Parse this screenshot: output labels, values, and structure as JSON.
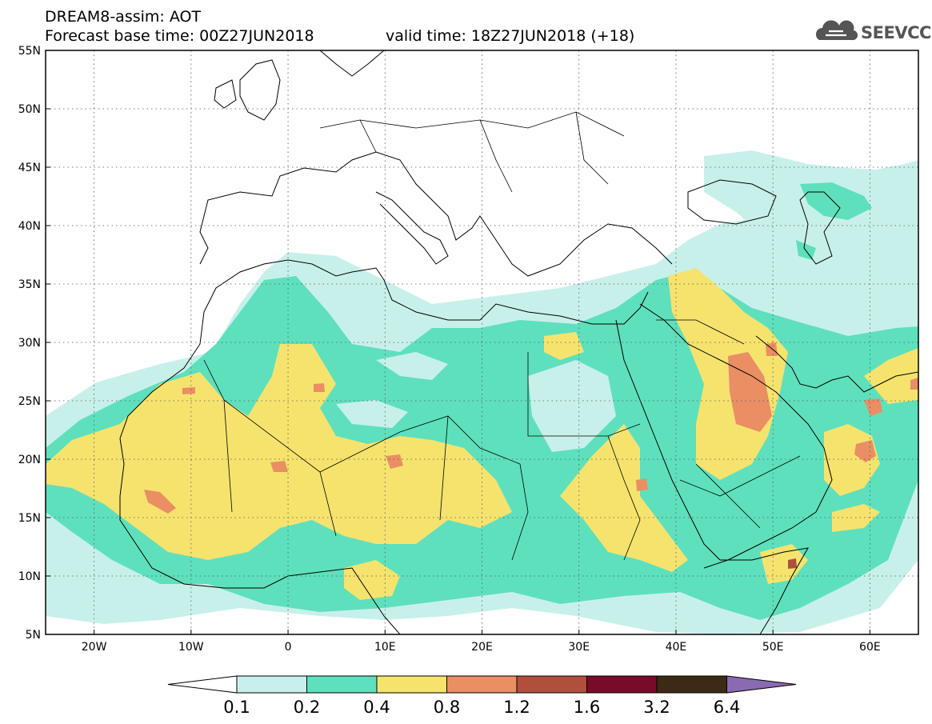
{
  "header": {
    "title": "DREAM8-assim: AOT",
    "base_time": "Forecast base time: 00Z27JUN2018",
    "valid_time": "valid time: 18Z27JUN2018 (+18)",
    "logo_text": "SEEVCCC"
  },
  "map": {
    "lon_range": [
      -25,
      65
    ],
    "lat_range": [
      5,
      55
    ],
    "lat_ticks": [
      "5N",
      "10N",
      "15N",
      "20N",
      "25N",
      "30N",
      "35N",
      "40N",
      "45N",
      "50N",
      "55N"
    ],
    "lon_ticks": [
      "20W",
      "10W",
      "0",
      "10E",
      "20E",
      "30E",
      "40E",
      "50E",
      "60E"
    ],
    "grid": true
  },
  "colorbar": {
    "labels": [
      "0.1",
      "0.2",
      "0.4",
      "0.8",
      "1.2",
      "1.6",
      "3.2",
      "6.4"
    ],
    "colors": [
      "#ffffff",
      "#c8f0ea",
      "#5ee0bd",
      "#f5e36e",
      "#ea8e64",
      "#b0503c",
      "#7a0a2a",
      "#3d2a14",
      "#8a6ab0"
    ]
  }
}
